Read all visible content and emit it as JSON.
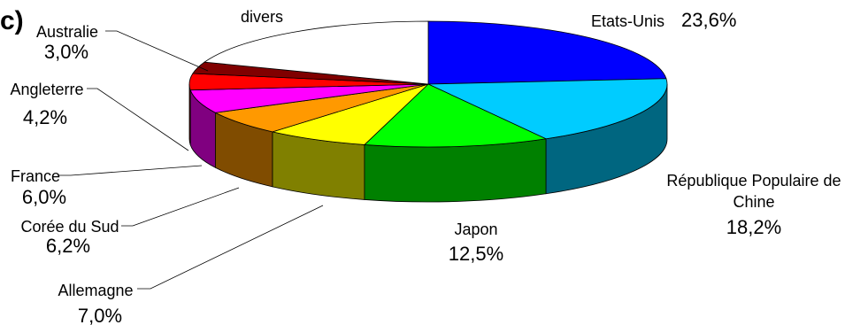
{
  "panel_label": "c)",
  "chart_data": {
    "type": "pie",
    "style": "3d-exploded-none",
    "title": "",
    "slices": [
      {
        "key": "etats_unis",
        "name": "Etats-Unis",
        "value": 23.6,
        "value_label": "23,6%",
        "color": "#0000ff",
        "side": "#000080"
      },
      {
        "key": "chine",
        "name": "République Populaire de Chine",
        "name_lines": [
          "République Populaire de",
          "Chine"
        ],
        "value": 18.2,
        "value_label": "18,2%",
        "color": "#00ccff",
        "side": "#006680"
      },
      {
        "key": "japon",
        "name": "Japon",
        "value": 12.5,
        "value_label": "12,5%",
        "color": "#00ff00",
        "side": "#008000"
      },
      {
        "key": "allemagne",
        "name": "Allemagne",
        "value": 7.0,
        "value_label": "7,0%",
        "color": "#ffff00",
        "side": "#808000"
      },
      {
        "key": "coree",
        "name": "Corée du Sud",
        "value": 6.2,
        "value_label": "6,2%",
        "color": "#ff9900",
        "side": "#804c00"
      },
      {
        "key": "france",
        "name": "France",
        "value": 6.0,
        "value_label": "6,0%",
        "color": "#ff00ff",
        "side": "#800080"
      },
      {
        "key": "angleterre",
        "name": "Angleterre",
        "value": 4.2,
        "value_label": "4,2%",
        "color": "#ff0000",
        "side": "#800000"
      },
      {
        "key": "australie",
        "name": "Australie",
        "value": 3.0,
        "value_label": "3,0%",
        "color": "#800000",
        "side": "#400000"
      },
      {
        "key": "divers",
        "name": "divers",
        "value": 19.3,
        "value_label": "",
        "color": "#ffffff",
        "side": "#e6e6e6"
      }
    ],
    "legend": "none",
    "labels": "outside-with-leaders"
  }
}
